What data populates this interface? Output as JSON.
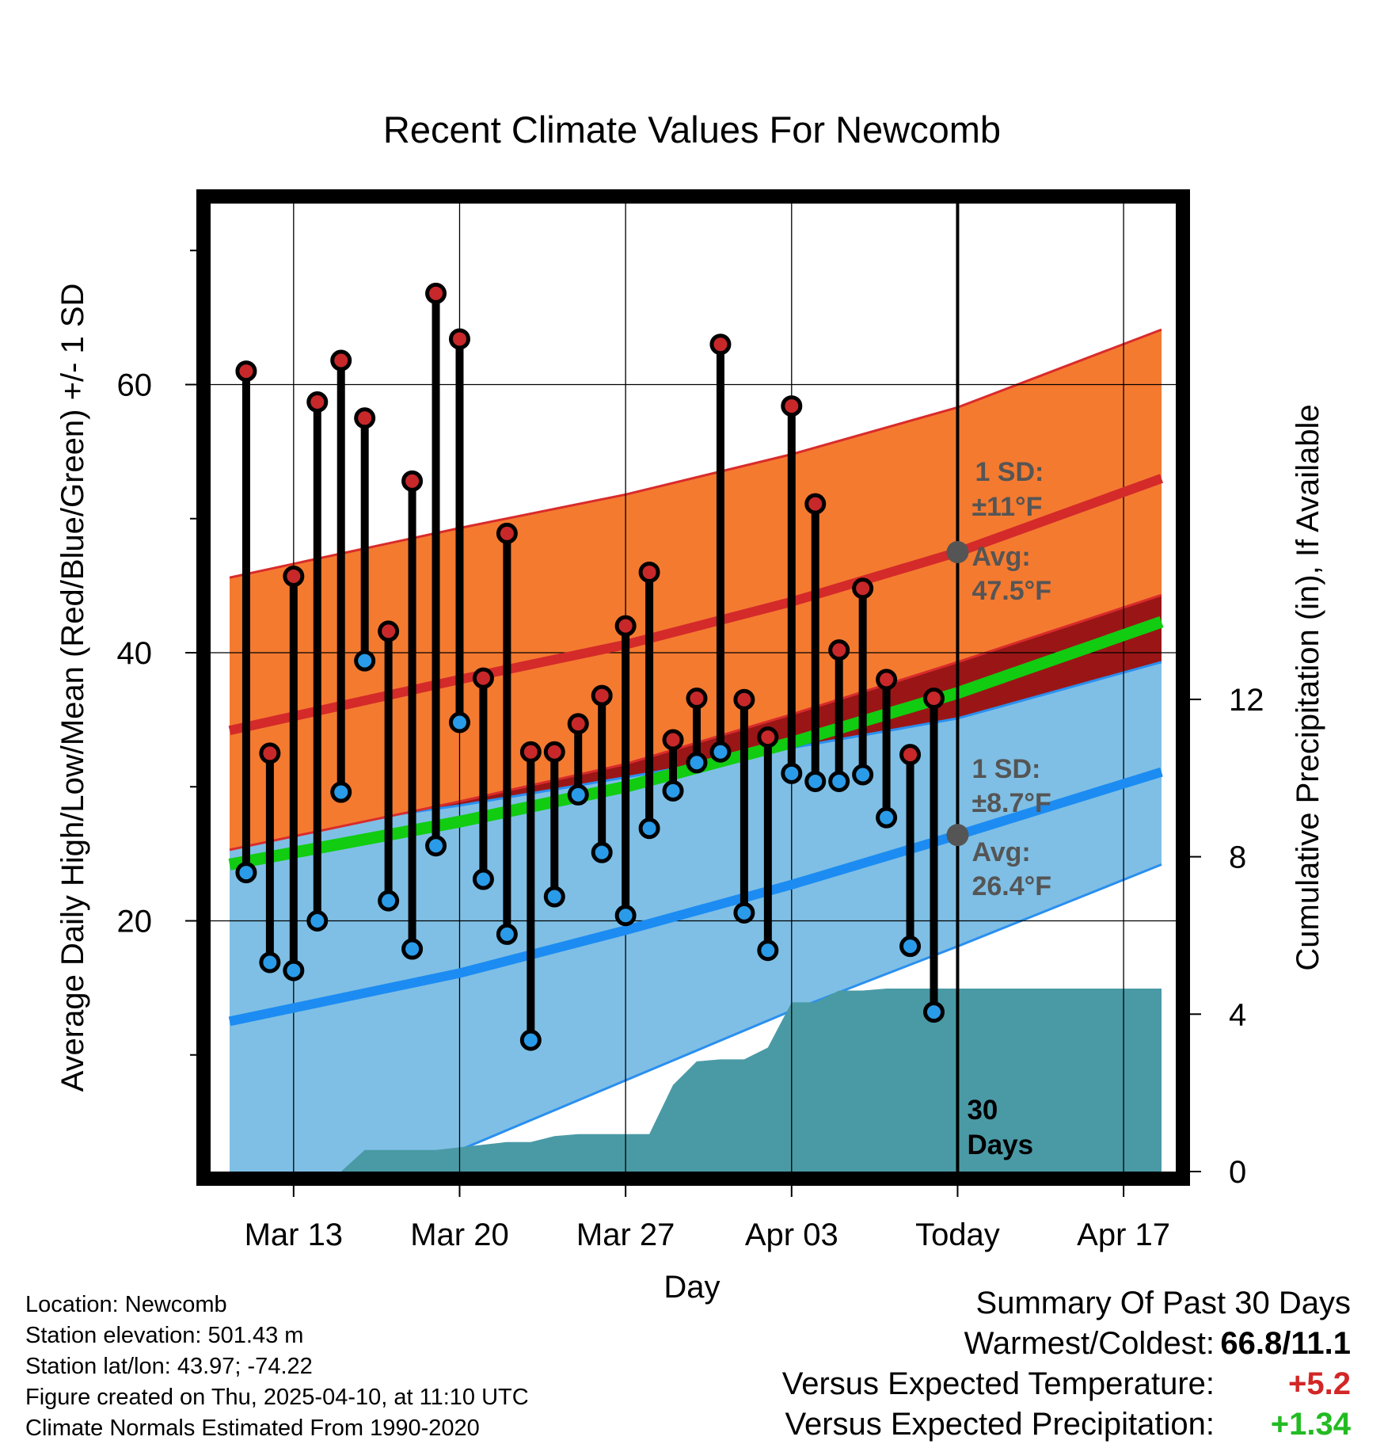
{
  "title": "Recent Climate Values For Newcomb",
  "colors": {
    "high_band": "#f47a30",
    "high_edge": "#d92b2b",
    "high_mean": "#d42a2a",
    "low_band": "#7fbfe5",
    "low_edge": "#2a8ff0",
    "low_mean": "#1c8cf2",
    "overlap": "#9a1616",
    "mean_line": "#11cc11",
    "precip": "#4a9aa6",
    "high_dot": "#c8282a",
    "low_dot": "#2a9be8",
    "avg_marker": "#555555"
  },
  "annotations": {
    "high_sd_label": "1 SD:",
    "high_sd_value": "±11°F",
    "high_avg_label": "Avg:",
    "high_avg_value": "47.5°F",
    "low_sd_label": "1 SD:",
    "low_sd_value": "±8.7°F",
    "low_avg_label": "Avg:",
    "low_avg_value": "26.4°F",
    "window_num": "30",
    "window_label": "Days"
  },
  "chart_data": {
    "type": "line",
    "title": "Recent Climate Values For Newcomb",
    "xlabel": "Day",
    "ylabel": "Average Daily High/Low/Mean (Red/Blue/Green) +/- 1 SD",
    "y2label": "Cumulative Precipitation (in), If Available",
    "x_range": [
      -3.5,
      37.2
    ],
    "ylim": [
      1.3,
      73.5
    ],
    "y2lim": [
      0,
      24.6
    ],
    "x_ticks": [
      {
        "x": 0,
        "label": "Mar 13"
      },
      {
        "x": 7,
        "label": "Mar 20"
      },
      {
        "x": 14,
        "label": "Mar 27"
      },
      {
        "x": 21,
        "label": "Apr 03"
      },
      {
        "x": 28,
        "label": "Today"
      },
      {
        "x": 35,
        "label": "Apr 17"
      }
    ],
    "y_ticks": [
      20,
      40,
      60
    ],
    "y_minor_ticks": [
      10,
      30,
      50,
      70
    ],
    "y2_ticks": [
      0,
      4,
      8,
      12
    ],
    "today_x": 28,
    "daily": {
      "x": [
        -2,
        -1,
        0,
        1,
        2,
        3,
        4,
        5,
        6,
        7,
        8,
        9,
        10,
        11,
        12,
        13,
        14,
        15,
        16,
        17,
        18,
        19,
        20,
        21,
        22,
        23,
        24,
        25,
        26,
        27
      ],
      "high": [
        61.0,
        32.5,
        45.7,
        58.7,
        61.8,
        57.5,
        41.6,
        52.8,
        66.8,
        63.4,
        38.1,
        48.9,
        32.6,
        32.6,
        34.7,
        36.8,
        42.0,
        46.0,
        33.5,
        36.6,
        63.0,
        36.5,
        33.7,
        58.4,
        51.1,
        40.2,
        44.8,
        38.0,
        32.4,
        36.6
      ],
      "low": [
        23.6,
        16.9,
        16.3,
        20.0,
        29.6,
        39.4,
        21.5,
        17.9,
        25.6,
        34.8,
        23.1,
        19.0,
        11.1,
        21.8,
        29.4,
        25.1,
        20.4,
        26.9,
        29.7,
        31.8,
        32.6,
        20.6,
        17.8,
        31.0,
        30.4,
        30.4,
        30.9,
        27.7,
        18.1,
        13.2
      ]
    },
    "normals": {
      "x": [
        -2.7,
        7,
        14,
        21,
        28,
        36.6
      ],
      "high_mean": [
        34.2,
        38.0,
        40.6,
        43.8,
        47.5,
        53.0
      ],
      "high_upper": [
        45.6,
        49.3,
        51.8,
        54.8,
        58.3,
        64.1
      ],
      "high_lower": [
        25.3,
        28.9,
        31.7,
        35.4,
        39.3,
        44.3
      ],
      "low_mean": [
        12.5,
        16.1,
        19.3,
        22.7,
        26.4,
        31.1
      ],
      "low_upper": [
        26.2,
        28.6,
        30.7,
        32.9,
        35.1,
        39.3
      ],
      "low_lower": [
        -2.3,
        2.9,
        8.1,
        13.3,
        18.1,
        24.2
      ],
      "mean": [
        24.2,
        27.4,
        30.0,
        33.3,
        37.0,
        42.3
      ]
    },
    "precip": {
      "x": [
        -2.7,
        2,
        3,
        6,
        9,
        10,
        11,
        12,
        13,
        14,
        15,
        16,
        17,
        18,
        19,
        20,
        21,
        22,
        23,
        24,
        25,
        26,
        27,
        28,
        36.6
      ],
      "y": [
        0,
        0,
        0.55,
        0.55,
        0.75,
        0.75,
        0.9,
        0.95,
        0.95,
        0.95,
        0.95,
        2.2,
        2.8,
        2.85,
        2.85,
        3.15,
        4.3,
        4.3,
        4.6,
        4.6,
        4.65,
        4.65,
        4.65,
        4.65,
        4.65
      ]
    }
  },
  "footer": {
    "location": "Location: Newcomb",
    "elevation": "Station elevation: 501.43 m",
    "latlon": "Station lat/lon: 43.97; -74.22",
    "created": "Figure created on Thu, 2025-04-10, at 11:10 UTC",
    "normals": "Climate Normals Estimated From 1990-2020"
  },
  "summary": {
    "heading": "Summary Of Past 30 Days",
    "warmest_label": "Warmest/Coldest:",
    "warmest_value": "66.8/11.1",
    "temp_label": "Versus Expected Temperature:",
    "temp_value": "+5.2",
    "precip_label": "Versus Expected Precipitation:",
    "precip_value": "+1.34"
  }
}
